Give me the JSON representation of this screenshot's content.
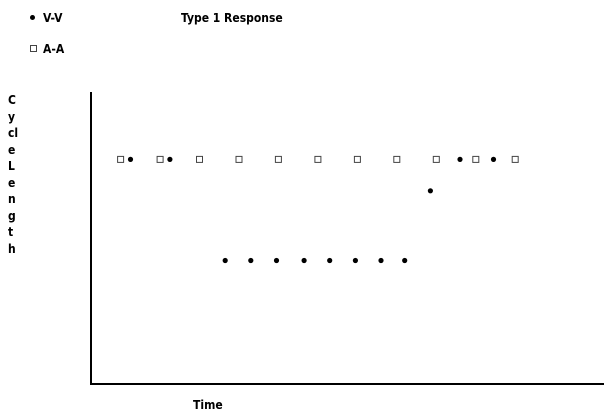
{
  "chart_data": {
    "type": "scatter",
    "title": "Type 1 Response",
    "xlabel": "Time",
    "ylabel": "Cycle Length",
    "grid": false,
    "legend_position": "top-left",
    "series": [
      {
        "name": "V-V",
        "marker": "filled-dot",
        "color": "#000000",
        "x": [
          1,
          2,
          3.4,
          4.05,
          4.7,
          5.4,
          6.05,
          6.7,
          7.35,
          7.95,
          8.6,
          9.35,
          10.2
        ],
        "y": [
          100,
          100,
          55,
          55,
          55,
          55,
          55,
          55,
          55,
          55,
          86,
          100,
          100
        ]
      },
      {
        "name": "A-A",
        "marker": "hollow-square",
        "color": "#444444",
        "x": [
          0.75,
          1.75,
          2.75,
          3.75,
          4.75,
          5.75,
          6.75,
          7.75,
          8.75,
          9.75,
          10.75
        ],
        "y": [
          100,
          100,
          100,
          100,
          100,
          100,
          100,
          100,
          100,
          100,
          100
        ]
      }
    ],
    "xlim": [
      0,
      13
    ],
    "ylim": [
      0,
      130
    ]
  }
}
